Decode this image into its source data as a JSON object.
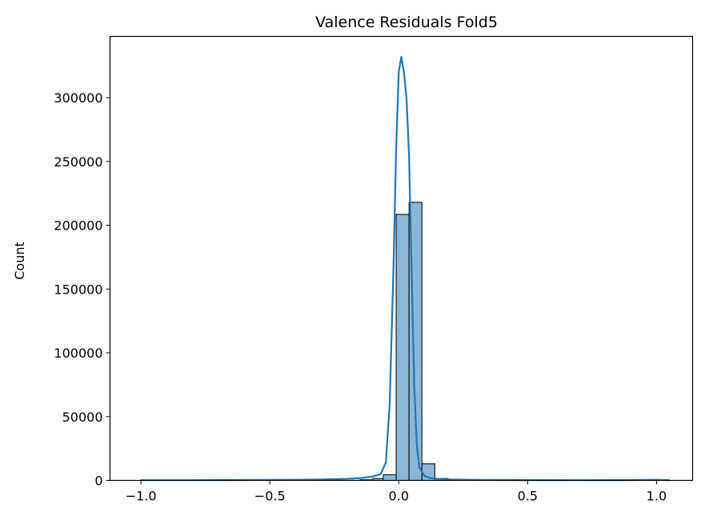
{
  "chart_data": {
    "type": "bar",
    "title": "Valence Residuals Fold5",
    "xlabel": "",
    "ylabel": "Count",
    "xlim": [
      -1.12,
      1.14
    ],
    "ylim": [
      0,
      348000
    ],
    "x_ticks": [
      {
        "value": -1.0,
        "label": "−1.0"
      },
      {
        "value": -0.5,
        "label": "−0.5"
      },
      {
        "value": 0.0,
        "label": "0.0"
      },
      {
        "value": 0.5,
        "label": "0.5"
      },
      {
        "value": 1.0,
        "label": "1.0"
      }
    ],
    "y_ticks": [
      {
        "value": 0,
        "label": "0"
      },
      {
        "value": 50000,
        "label": "50000"
      },
      {
        "value": 100000,
        "label": "100000"
      },
      {
        "value": 150000,
        "label": "150000"
      },
      {
        "value": 200000,
        "label": "200000"
      },
      {
        "value": 250000,
        "label": "250000"
      },
      {
        "value": 300000,
        "label": "300000"
      }
    ],
    "bin_width": 0.05,
    "bins": [
      {
        "start": -0.15,
        "count": 500
      },
      {
        "start": -0.1,
        "count": 1500
      },
      {
        "start": -0.06,
        "count": 4500
      },
      {
        "start": -0.01,
        "count": 208500
      },
      {
        "start": 0.04,
        "count": 218000
      },
      {
        "start": 0.09,
        "count": 13000
      },
      {
        "start": 0.14,
        "count": 1500
      },
      {
        "start": 0.19,
        "count": 500
      }
    ],
    "kde": {
      "x": [
        -1.0,
        -0.8,
        -0.6,
        -0.4,
        -0.3,
        -0.2,
        -0.15,
        -0.1,
        -0.07,
        -0.05,
        -0.035,
        -0.02,
        -0.01,
        0.0,
        0.01,
        0.02,
        0.03,
        0.04,
        0.05,
        0.06,
        0.07,
        0.08,
        0.1,
        0.12,
        0.15,
        0.2,
        0.3,
        0.5,
        0.7,
        0.9,
        1.0,
        1.05
      ],
      "y": [
        200,
        200,
        300,
        500,
        700,
        1200,
        1800,
        3000,
        5000,
        14000,
        60000,
        170000,
        260000,
        320000,
        332000,
        320000,
        300000,
        255000,
        165000,
        75000,
        28000,
        10000,
        3500,
        2000,
        1200,
        700,
        400,
        250,
        200,
        250,
        500,
        200
      ]
    },
    "colors": {
      "bar_fill": "#8ab6d8",
      "bar_edge": "#000000",
      "line": "#1f77b4"
    },
    "grid": false,
    "legend": "none"
  }
}
